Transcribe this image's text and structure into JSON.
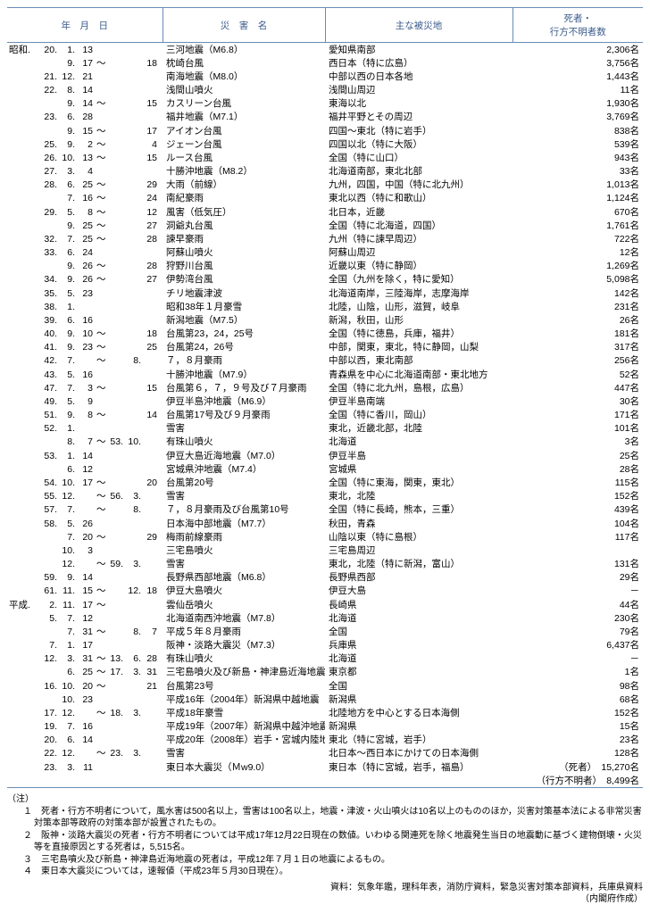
{
  "colors": {
    "rule": "#6a8bb5",
    "header_text": "#3a5a8a",
    "text": "#000000",
    "bg": "#ffffff"
  },
  "header": {
    "date": "年　月　日",
    "name": "災　害　名",
    "area": "主な被災地",
    "casualty": "死者・\n行方不明者数"
  },
  "rows": [
    {
      "era": "昭和",
      "y": "20",
      "m": "1",
      "d": "13",
      "name": "三河地震（M6.8）",
      "area": "愛知県南部",
      "num": "2,306名"
    },
    {
      "m": "9",
      "d": "17",
      "til": "～",
      "d2": "18",
      "name": "枕崎台風",
      "area": "西日本（特に広島）",
      "num": "3,756名"
    },
    {
      "y": "21",
      "m": "12",
      "d": "21",
      "name": "南海地震（M8.0）",
      "area": "中部以西の日本各地",
      "num": "1,443名"
    },
    {
      "y": "22",
      "m": "8",
      "d": "14",
      "name": "浅間山噴火",
      "area": "浅間山周辺",
      "num": "11名"
    },
    {
      "m": "9",
      "d": "14",
      "til": "～",
      "d2": "15",
      "name": "カスリーン台風",
      "area": "東海以北",
      "num": "1,930名"
    },
    {
      "y": "23",
      "m": "6",
      "d": "28",
      "name": "福井地震（M7.1）",
      "area": "福井平野とその周辺",
      "num": "3,769名"
    },
    {
      "m": "9",
      "d": "15",
      "til": "～",
      "d2": "17",
      "name": "アイオン台風",
      "area": "四国～東北（特に岩手）",
      "num": "838名"
    },
    {
      "y": "25",
      "m": "9",
      "d": "2",
      "til": "～",
      "d2": "4",
      "name": "ジェーン台風",
      "area": "四国以北（特に大阪）",
      "num": "539名"
    },
    {
      "y": "26",
      "m": "10",
      "d": "13",
      "til": "～",
      "d2": "15",
      "name": "ルース台風",
      "area": "全国（特に山口）",
      "num": "943名"
    },
    {
      "y": "27",
      "m": "3",
      "d": "4",
      "name": "十勝沖地震（M8.2）",
      "area": "北海道南部，東北北部",
      "num": "33名"
    },
    {
      "y": "28",
      "m": "6",
      "d": "25",
      "til": "～",
      "d2": "29",
      "name": "大雨（前線）",
      "area": "九州，四国，中国（特に北九州）",
      "num": "1,013名"
    },
    {
      "m": "7",
      "d": "16",
      "til": "～",
      "d2": "24",
      "name": "南紀豪雨",
      "area": "東北以西（特に和歌山）",
      "num": "1,124名"
    },
    {
      "y": "29",
      "m": "5",
      "d": "8",
      "til": "～",
      "d2": "12",
      "name": "風害（低気圧）",
      "area": "北日本，近畿",
      "num": "670名"
    },
    {
      "m": "9",
      "d": "25",
      "til": "～",
      "d2": "27",
      "name": "洞爺丸台風",
      "area": "全国（特に北海道，四国）",
      "num": "1,761名"
    },
    {
      "y": "32",
      "m": "7",
      "d": "25",
      "til": "～",
      "d2": "28",
      "name": "諫早豪雨",
      "area": "九州（特に諫早周辺）",
      "num": "722名"
    },
    {
      "y": "33",
      "m": "6",
      "d": "24",
      "name": "阿蘇山噴火",
      "area": "阿蘇山周辺",
      "num": "12名"
    },
    {
      "m": "9",
      "d": "26",
      "til": "～",
      "d2": "28",
      "name": "狩野川台風",
      "area": "近畿以東（特に静岡）",
      "num": "1,269名"
    },
    {
      "y": "34",
      "m": "9",
      "d": "26",
      "til": "～",
      "d2": "27",
      "name": "伊勢湾台風",
      "area": "全国（九州を除く，特に愛知）",
      "num": "5,098名"
    },
    {
      "y": "35",
      "m": "5",
      "d": "23",
      "name": "チリ地震津波",
      "area": "北海道南岸，三陸海岸，志摩海岸",
      "num": "142名"
    },
    {
      "y": "38",
      "m": "1",
      "name": "昭和38年１月豪雪",
      "area": "北陸，山陰，山形，滋賀，岐阜",
      "num": "231名"
    },
    {
      "y": "39",
      "m": "6",
      "d": "16",
      "name": "新潟地震（M7.5）",
      "area": "新潟，秋田，山形",
      "num": "26名"
    },
    {
      "y": "40",
      "m": "9",
      "d": "10",
      "til": "～",
      "d2": "18",
      "name": "台風第23，24，25号",
      "area": "全国（特に徳島，兵庫，福井）",
      "num": "181名"
    },
    {
      "y": "41",
      "m": "9",
      "d": "23",
      "til": "～",
      "d2": "25",
      "name": "台風第24，26号",
      "area": "中部，関東，東北，特に静岡，山梨",
      "num": "317名"
    },
    {
      "y": "42",
      "m": "7",
      "til": "～",
      "m2": "8",
      "name": "７，８月豪雨",
      "area": "中部以西，東北南部",
      "num": "256名"
    },
    {
      "y": "43",
      "m": "5",
      "d": "16",
      "name": "十勝沖地震（M7.9）",
      "area": "青森県を中心に北海道南部・東北地方",
      "num": "52名"
    },
    {
      "y": "47",
      "m": "7",
      "d": "3",
      "til": "～",
      "d2": "15",
      "name": "台風第６，７，９号及び７月豪雨",
      "area": "全国（特に北九州，島根，広島）",
      "num": "447名"
    },
    {
      "y": "49",
      "m": "5",
      "d": "9",
      "name": "伊豆半島沖地震（M6.9）",
      "area": "伊豆半島南端",
      "num": "30名"
    },
    {
      "y": "51",
      "m": "9",
      "d": "8",
      "til": "～",
      "d2": "14",
      "name": "台風第17号及び９月豪雨",
      "area": "全国（特に香川，岡山）",
      "num": "171名"
    },
    {
      "y": "52",
      "m": "1",
      "name": "雪害",
      "area": "東北，近畿北部，北陸",
      "num": "101名"
    },
    {
      "m": "8",
      "d": "7",
      "til": "～",
      "y2": "53",
      "m2": "10",
      "name": "有珠山噴火",
      "area": "北海道",
      "num": "3名"
    },
    {
      "y": "53",
      "m": "1",
      "d": "14",
      "name": "伊豆大島近海地震（M7.0）",
      "area": "伊豆半島",
      "num": "25名"
    },
    {
      "m": "6",
      "d": "12",
      "name": "宮城県沖地震（M7.4）",
      "area": "宮城県",
      "num": "28名"
    },
    {
      "y": "54",
      "m": "10",
      "d": "17",
      "til": "～",
      "d2": "20",
      "name": "台風第20号",
      "area": "全国（特に東海，関東，東北）",
      "num": "115名"
    },
    {
      "y": "55",
      "m": "12",
      "til": "～",
      "y2": "56",
      "m2": "3",
      "name": "雪害",
      "area": "東北，北陸",
      "num": "152名"
    },
    {
      "y": "57",
      "m": "7",
      "til": "～",
      "m2": "8",
      "name": "７，８月豪雨及び台風第10号",
      "area": "全国（特に長崎，熊本，三重）",
      "num": "439名"
    },
    {
      "y": "58",
      "m": "5",
      "d": "26",
      "name": "日本海中部地震（M7.7）",
      "area": "秋田，青森",
      "num": "104名"
    },
    {
      "m": "7",
      "d": "20",
      "til": "～",
      "d2": "29",
      "name": "梅雨前線豪雨",
      "area": "山陰以東（特に島根）",
      "num": "117名"
    },
    {
      "m": "10",
      "d": "3",
      "name": "三宅島噴火",
      "area": "三宅島周辺",
      "num": ""
    },
    {
      "m": "12",
      "til": "～",
      "y2": "59",
      "m2": "3",
      "name": "雪害",
      "area": "東北，北陸（特に新潟，富山）",
      "num": "131名"
    },
    {
      "y": "59",
      "m": "9",
      "d": "14",
      "name": "長野県西部地震（M6.8）",
      "area": "長野県西部",
      "num": "29名"
    },
    {
      "y": "61",
      "m": "11",
      "d": "15",
      "til": "～",
      "m2": "12",
      "d2": "18",
      "name": "伊豆大島噴火",
      "area": "伊豆大島",
      "num": "－"
    },
    {
      "era": "平成",
      "y": "2",
      "m": "11",
      "d": "17",
      "til": "～",
      "name": "雲仙岳噴火",
      "area": "長崎県",
      "num": "44名"
    },
    {
      "y": "5",
      "m": "7",
      "d": "12",
      "name": "北海道南西沖地震（M7.8）",
      "area": "北海道",
      "num": "230名"
    },
    {
      "m": "7",
      "d": "31",
      "til": "～",
      "m2": "8",
      "d2": "7",
      "name": "平成５年８月豪雨",
      "area": "全国",
      "num": "79名"
    },
    {
      "y": "7",
      "m": "1",
      "d": "17",
      "name": "阪神・淡路大震災（M7.3）",
      "area": "兵庫県",
      "num": "6,437名"
    },
    {
      "y": "12",
      "m": "3",
      "d": "31",
      "til": "～",
      "y2": "13",
      "m2": "6",
      "d2": "28",
      "name": "有珠山噴火",
      "area": "北海道",
      "num": "－"
    },
    {
      "m": "6",
      "d": "25",
      "til": "～",
      "y2": "17",
      "m2": "3",
      "d2": "31",
      "name": "三宅島噴火及び新島・神津島近海地震",
      "area": "東京都",
      "num": "1名"
    },
    {
      "y": "16",
      "m": "10",
      "d": "20",
      "til": "～",
      "d2": "21",
      "name": "台風第23号",
      "area": "全国",
      "num": "98名"
    },
    {
      "m": "10",
      "d": "23",
      "name": "平成16年（2004年）新潟県中越地震（M6.8）",
      "area": "新潟県",
      "num": "68名"
    },
    {
      "y": "17",
      "m": "12",
      "til": "～",
      "y2": "18",
      "m2": "3",
      "name": "平成18年豪雪",
      "area": "北陸地方を中心とする日本海側",
      "num": "152名"
    },
    {
      "y": "19",
      "m": "7",
      "d": "16",
      "name": "平成19年（2007年）新潟県中越沖地震（M6.8）",
      "area": "新潟県",
      "num": "15名"
    },
    {
      "y": "20",
      "m": "6",
      "d": "14",
      "name": "平成20年（2008年）岩手・宮城内陸地震（M7.2）",
      "area": "東北（特に宮城，岩手）",
      "num": "23名"
    },
    {
      "y": "22",
      "m": "12",
      "til": "～",
      "y2": "23",
      "m2": "3",
      "name": "雪害",
      "area": "北日本～西日本にかけての日本海側",
      "num": "128名"
    },
    {
      "y": "23",
      "m": "3",
      "d": "11",
      "name": "東日本大震災（Ｍw9.0）",
      "area": "東日本（特に宮城，岩手，福島）",
      "num": "（死者）　15,270名"
    },
    {
      "num": "（行方不明者）　8,499名"
    }
  ],
  "notes": {
    "label": "（注）",
    "items": [
      "１　死者・行方不明者について，風水害は500名以上，雪害は100名以上，地震・津波・火山噴火は10名以上のもののほか，災害対策基本法による非常災害対策本部等政府の対策本部が設置されたもの。",
      "２　阪神・淡路大震災の死者・行方不明者については平成17年12月22日現在の数値。いわゆる関連死を除く地震発生当日の地震動に基づく建物倒壊・火災等を直接原因とする死者は，5,515名。",
      "３　三宅島噴火及び新島・神津島近海地震の死者は，平成12年７月１日の地震によるもの。",
      "４　東日本大震災については，速報値（平成23年５月30日現在）。"
    ]
  },
  "source": {
    "line1": "資料：気象年鑑，理科年表，消防庁資料，緊急災害対策本部資料，兵庫県資料",
    "line2": "（内閣府作成）"
  }
}
